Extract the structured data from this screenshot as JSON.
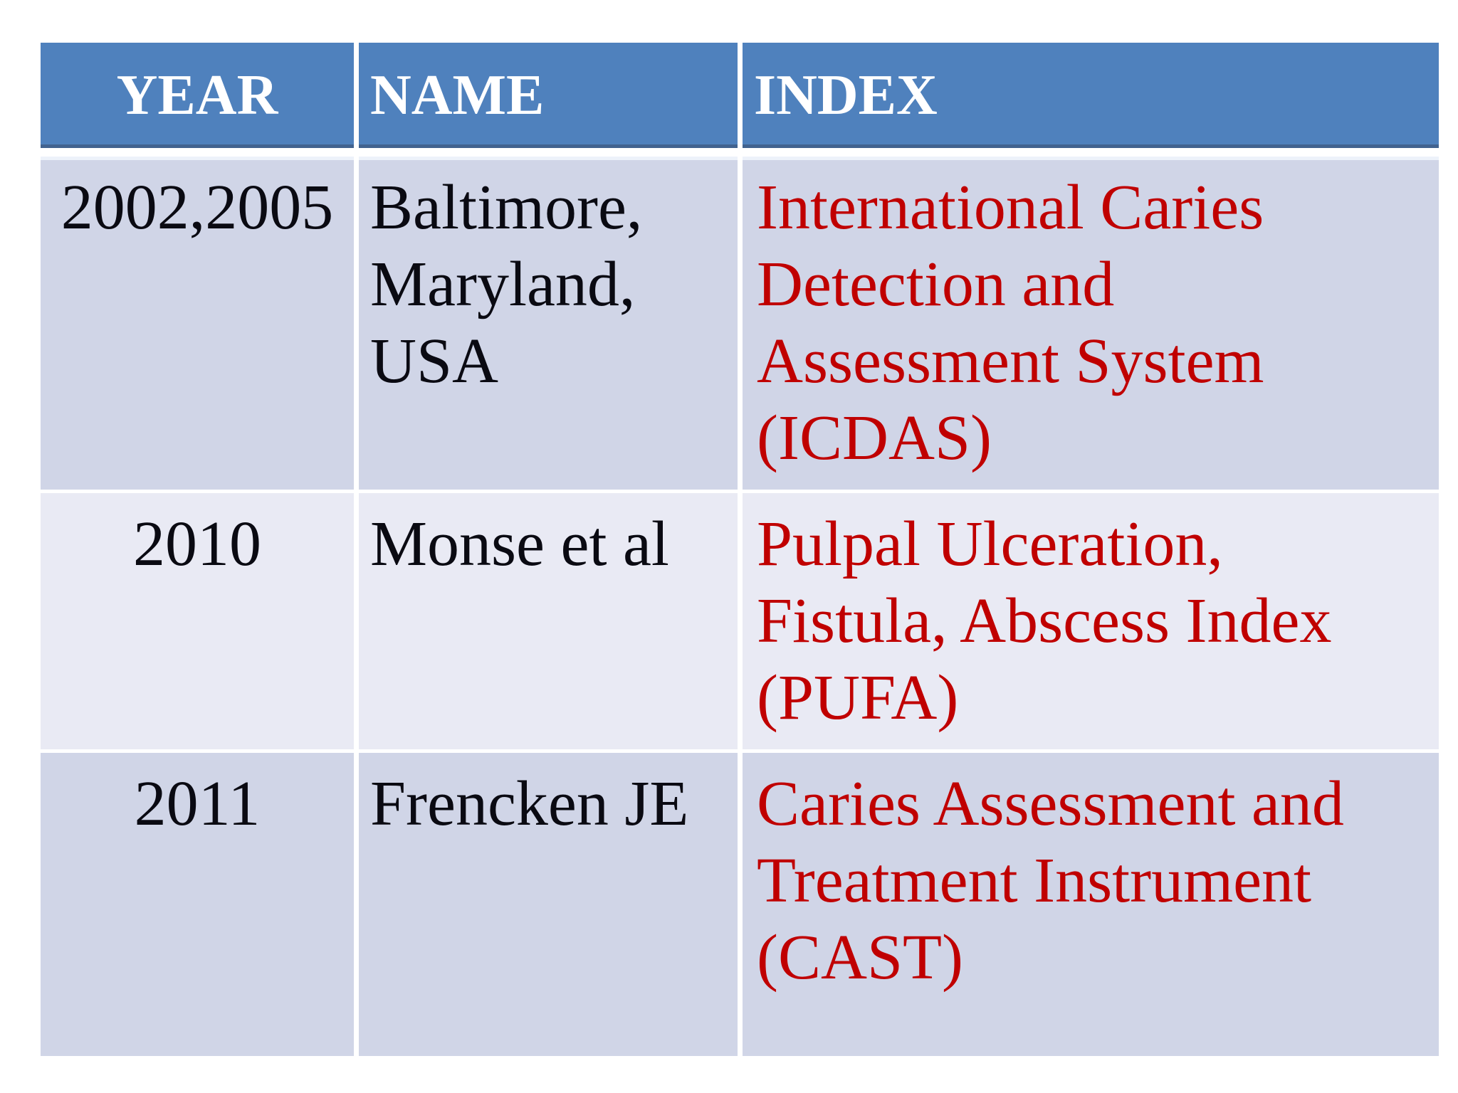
{
  "colors": {
    "page_bg": "#ffffff",
    "header_bg": "#4f81bd",
    "header_text": "#ffffff",
    "row_odd_bg": "#d0d5e7",
    "row_even_bg": "#e9eaf4",
    "body_text": "#0a0a12",
    "index_text": "#c00000"
  },
  "table": {
    "headers": [
      "YEAR",
      "NAME",
      "INDEX"
    ],
    "rows": [
      {
        "year": "2002,2005",
        "name": "Baltimore, Maryland, USA",
        "index": "International Caries Detection and Assessment System (ICDAS)"
      },
      {
        "year": "2010",
        "name": "Monse et al",
        "index": "Pulpal Ulceration, Fistula, Abscess Index (PUFA)"
      },
      {
        "year": "2011",
        "name": "Frencken JE",
        "index": "Caries Assessment and Treatment Instrument (CAST)"
      }
    ]
  }
}
